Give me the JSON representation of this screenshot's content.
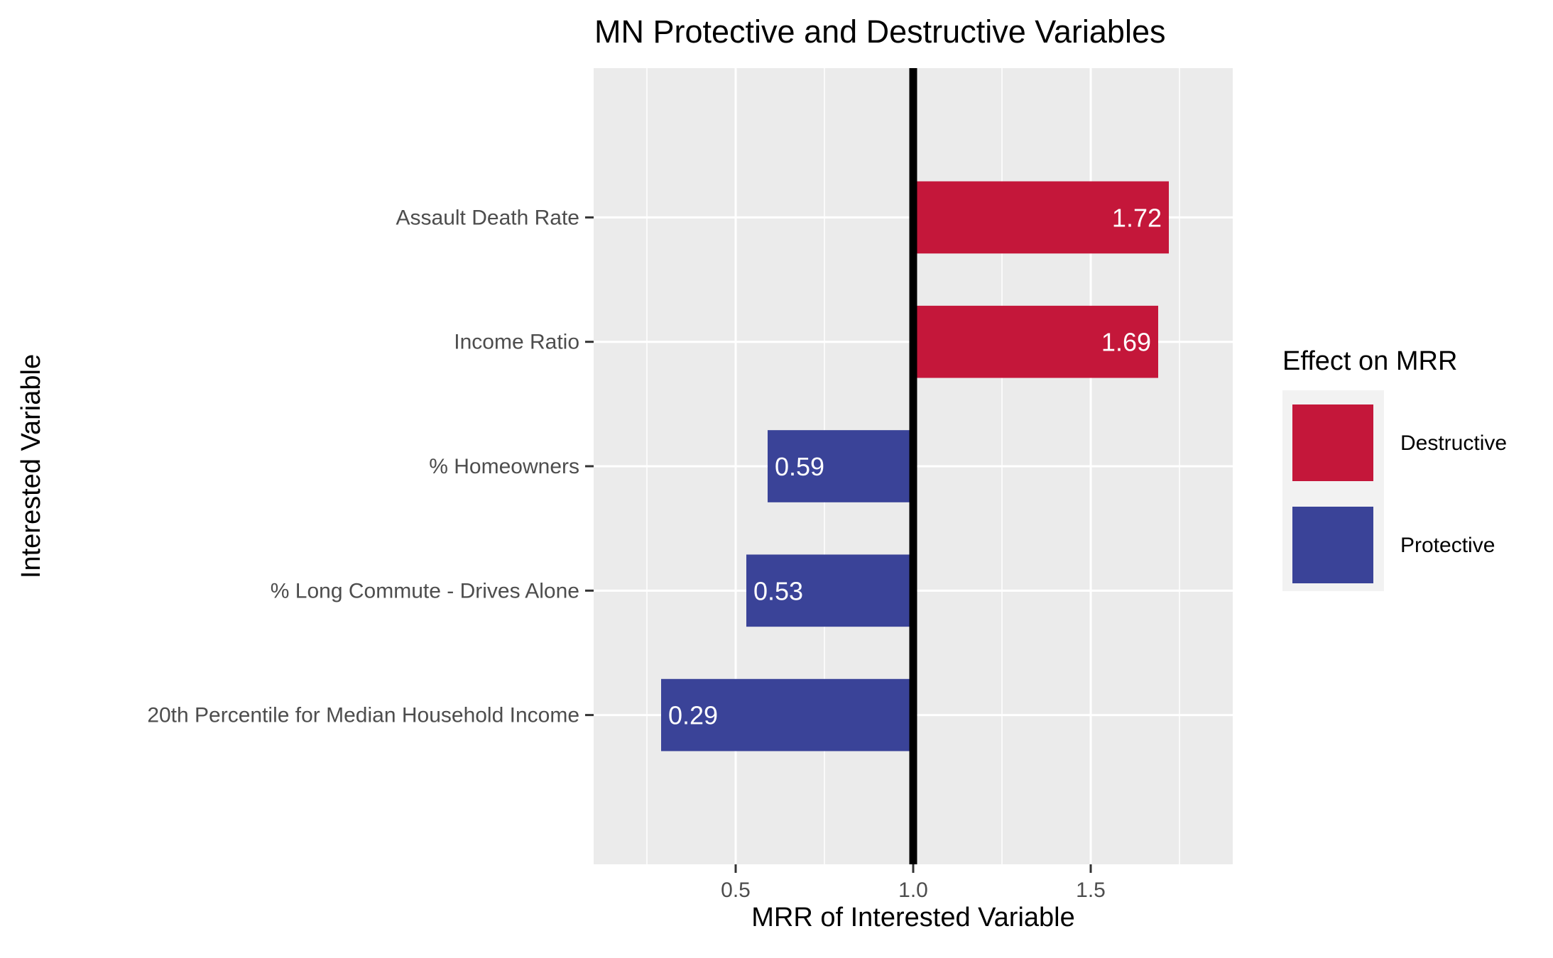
{
  "chart_data": {
    "type": "bar",
    "orientation": "horizontal",
    "title": "MN Protective and Destructive Variables",
    "xlabel": "MRR of Interested Variable",
    "ylabel": "Interested Variable",
    "reference_line": 1.0,
    "xlim": [
      0.1,
      1.9
    ],
    "x_ticks": [
      0.5,
      1.0,
      1.5
    ],
    "x_tick_labels": [
      "0.5",
      "1.0",
      "1.5"
    ],
    "grid": true,
    "categories": [
      "Assault Death Rate",
      "Income Ratio",
      "% Homeowners",
      "% Long Commute - Drives Alone",
      "20th Percentile for Median Household Income"
    ],
    "values": [
      1.72,
      1.69,
      0.59,
      0.53,
      0.29
    ],
    "value_labels": [
      "1.72",
      "1.69",
      "0.59",
      "0.53",
      "0.29"
    ],
    "effects": [
      "Destructive",
      "Destructive",
      "Protective",
      "Protective",
      "Protective"
    ],
    "legend": {
      "title": "Effect on MRR",
      "position": "right",
      "items": [
        {
          "label": "Destructive",
          "color": "#c4173a"
        },
        {
          "label": "Protective",
          "color": "#3a4398"
        }
      ]
    },
    "colors": {
      "Destructive": "#c4173a",
      "Protective": "#3a4398",
      "panel": "#ebebeb",
      "grid": "#ffffff",
      "reference_line": "#000000"
    }
  }
}
